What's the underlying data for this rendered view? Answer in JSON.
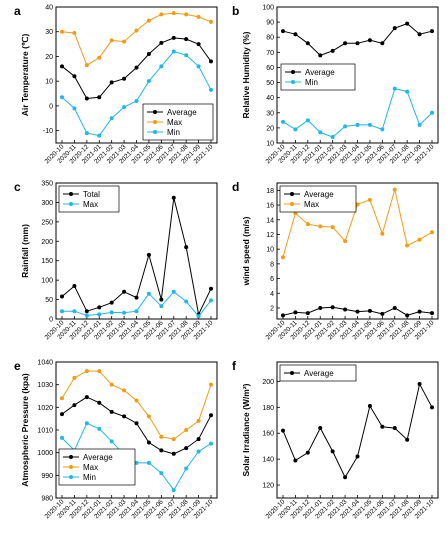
{
  "figure": {
    "months": [
      "2020-10",
      "2020-11",
      "2020-12",
      "2021-01",
      "2021-02",
      "2021-03",
      "2021-04",
      "2021-05",
      "2021-06",
      "2021-07",
      "2021-08",
      "2021-09",
      "2021-10"
    ]
  },
  "colors": {
    "black": "#000000",
    "orange": "#f39c12",
    "cyan": "#1fb8e8"
  },
  "chart_data": [
    {
      "panel": "a",
      "type": "line",
      "ylabel": "Air Temperature (℃)",
      "ylim": [
        -15,
        40
      ],
      "yticks": [
        -10,
        0,
        10,
        20,
        30,
        40
      ],
      "legend_position": "bottom-right",
      "categories": [
        "2020-10",
        "2020-11",
        "2020-12",
        "2021-01",
        "2021-02",
        "2021-03",
        "2021-04",
        "2021-05",
        "2021-06",
        "2021-07",
        "2021-08",
        "2021-09",
        "2021-10"
      ],
      "series": [
        {
          "name": "Average",
          "color": "#000000",
          "values": [
            16,
            12,
            3,
            3.5,
            9.5,
            11,
            15.5,
            21,
            25.5,
            27.5,
            27,
            25,
            18
          ]
        },
        {
          "name": "Max",
          "color": "#f39c12",
          "values": [
            30,
            29.5,
            16.5,
            19.5,
            26.5,
            26,
            30.5,
            34.5,
            37,
            37.5,
            37,
            36,
            34
          ]
        },
        {
          "name": "Min",
          "color": "#1fb8e8",
          "values": [
            3.5,
            -1,
            -11,
            -12,
            -5,
            -0.5,
            2,
            10,
            16,
            22,
            20.5,
            16,
            6.5
          ]
        }
      ]
    },
    {
      "panel": "b",
      "type": "line",
      "ylabel": "Relative Humidity (%)",
      "ylim": [
        10,
        100
      ],
      "yticks": [
        10,
        20,
        30,
        40,
        50,
        60,
        70,
        80,
        90,
        100
      ],
      "legend_position": "middle-left",
      "categories": [
        "2020-10",
        "2020-11",
        "2020-12",
        "2021-01",
        "2021-02",
        "2021-03",
        "2021-04",
        "2021-05",
        "2021-06",
        "2021-07",
        "2021-08",
        "2021-09",
        "2021-10"
      ],
      "series": [
        {
          "name": "Average",
          "color": "#000000",
          "values": [
            84,
            82,
            76,
            68,
            71,
            76,
            76,
            78,
            76,
            86,
            89,
            82,
            84
          ]
        },
        {
          "name": "Min",
          "color": "#1fb8e8",
          "values": [
            24,
            19,
            25,
            17,
            14,
            21,
            22,
            22,
            19,
            46,
            44,
            22,
            30
          ]
        }
      ]
    },
    {
      "panel": "c",
      "type": "line",
      "ylabel": "Rainfall (mm)",
      "ylim": [
        0,
        350
      ],
      "yticks": [
        0,
        50,
        100,
        150,
        200,
        250,
        300,
        350
      ],
      "legend_position": "top-left",
      "categories": [
        "2020-10",
        "2020-11",
        "2020-12",
        "2021-01",
        "2021-02",
        "2021-03",
        "2021-04",
        "2021-05",
        "2021-06",
        "2021-07",
        "2021-08",
        "2021-09",
        "2021-10"
      ],
      "series": [
        {
          "name": "Total",
          "color": "#000000",
          "values": [
            58,
            85,
            20,
            30,
            42,
            70,
            55,
            165,
            50,
            312,
            185,
            12,
            78
          ]
        },
        {
          "name": "Max",
          "color": "#1fb8e8",
          "values": [
            20,
            20,
            9,
            12,
            17,
            16,
            20,
            65,
            33,
            70,
            45,
            7,
            48
          ]
        }
      ]
    },
    {
      "panel": "d",
      "type": "line",
      "ylabel": "wind speed (m/s)",
      "ylim": [
        0.5,
        19
      ],
      "yticks": [
        2,
        4,
        6,
        8,
        10,
        12,
        14,
        16,
        18
      ],
      "legend_position": "top-left",
      "categories": [
        "2020-10",
        "2020-11",
        "2020-12",
        "2021-01",
        "2021-02",
        "2021-03",
        "2021-04",
        "2021-05",
        "2021-06",
        "2021-07",
        "2021-08",
        "2021-09",
        "2021-10"
      ],
      "series": [
        {
          "name": "Average",
          "color": "#000000",
          "values": [
            1.0,
            1.4,
            1.3,
            2.0,
            2.1,
            1.8,
            1.5,
            1.6,
            1.2,
            2.0,
            1.0,
            1.5,
            1.3
          ]
        },
        {
          "name": "Max",
          "color": "#f39c12",
          "values": [
            8.9,
            14.9,
            13.4,
            13.1,
            13.0,
            11.1,
            16.1,
            16.7,
            12.1,
            18.1,
            10.5,
            11.3,
            12.3
          ]
        }
      ]
    },
    {
      "panel": "e",
      "type": "line",
      "ylabel": "Atmospheric Pressure (kpa)",
      "ylim": [
        980,
        1040
      ],
      "yticks": [
        980,
        990,
        1000,
        1010,
        1020,
        1030,
        1040
      ],
      "legend_position": "bottom-left",
      "categories": [
        "2020-10",
        "2020-11",
        "2020-12",
        "2021-01",
        "2021-02",
        "2021-03",
        "2021-04",
        "2021-05",
        "2021-06",
        "2021-07",
        "2021-08",
        "2021-09",
        "2021-10"
      ],
      "series": [
        {
          "name": "Average",
          "color": "#000000",
          "values": [
            1017,
            1021,
            1024.5,
            1022,
            1018,
            1016,
            1013,
            1004.5,
            1001,
            999.5,
            1002,
            1006,
            1016.5
          ]
        },
        {
          "name": "Max",
          "color": "#f39c12",
          "values": [
            1024,
            1033,
            1036,
            1036,
            1030,
            1027.5,
            1023,
            1016,
            1007,
            1006,
            1010,
            1014,
            1030
          ]
        },
        {
          "name": "Min",
          "color": "#1fb8e8",
          "values": [
            1006.5,
            1001,
            1013,
            1010.5,
            1005,
            999,
            995.5,
            995.5,
            991,
            983.5,
            993,
            1000.5,
            1004
          ]
        }
      ]
    },
    {
      "panel": "f",
      "type": "line",
      "ylabel": "Solar Irradiance (W/m²)",
      "ylim": [
        110,
        215
      ],
      "yticks": [
        120,
        140,
        160,
        180,
        200
      ],
      "legend_position": "top-left",
      "categories": [
        "2020-10",
        "2020-11",
        "2020-12",
        "2021-01",
        "2021-02",
        "2021-03",
        "2021-04",
        "2021-05",
        "2021-06",
        "2021-07",
        "2021-08",
        "2021-09",
        "2021-10"
      ],
      "series": [
        {
          "name": "Average",
          "color": "#000000",
          "values": [
            162,
            139,
            145,
            164,
            146,
            126,
            142,
            181,
            165,
            164,
            155,
            198,
            180
          ]
        }
      ]
    }
  ]
}
